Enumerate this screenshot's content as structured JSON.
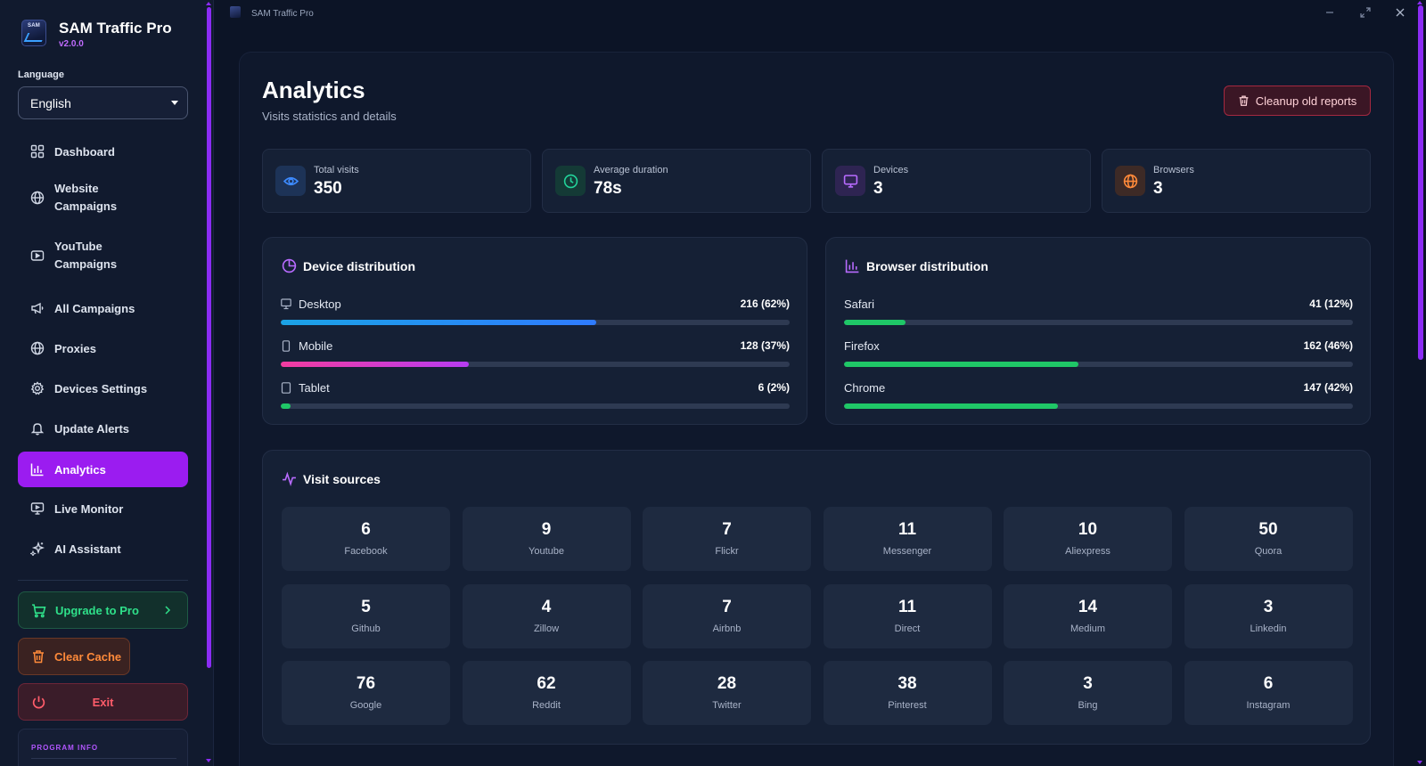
{
  "app": {
    "name": "SAM Traffic Pro",
    "version": "v2.0.0",
    "logo_text": "SAM"
  },
  "window": {
    "title": "SAM Traffic Pro"
  },
  "language": {
    "label": "Language",
    "selected": "English"
  },
  "nav": [
    {
      "label": "Dashboard",
      "icon": "dashboard-icon"
    },
    {
      "label": "Website Campaigns",
      "icon": "globe-icon"
    },
    {
      "label": "YouTube Campaigns",
      "icon": "video-icon"
    },
    {
      "label": "All Campaigns",
      "icon": "megaphone-icon"
    },
    {
      "label": "Proxies",
      "icon": "globe-icon"
    },
    {
      "label": "Devices Settings",
      "icon": "gear-icon"
    },
    {
      "label": "Update Alerts",
      "icon": "bell-icon"
    },
    {
      "label": "Analytics",
      "icon": "bar-chart-icon",
      "active": true
    },
    {
      "label": "Live Monitor",
      "icon": "monitor-icon"
    },
    {
      "label": "AI Assistant",
      "icon": "sparkles-icon"
    }
  ],
  "actions": {
    "upgrade": "Upgrade to Pro",
    "clear_cache": "Clear Cache",
    "exit": "Exit"
  },
  "program_info": {
    "label": "PROGRAM INFO"
  },
  "page": {
    "title": "Analytics",
    "subtitle": "Visits statistics and details",
    "cleanup_label": "Cleanup old reports"
  },
  "stats": [
    {
      "label": "Total visits",
      "value": "350",
      "icon": "eye-icon",
      "color": "#3d8bff",
      "bg": "#1d3357"
    },
    {
      "label": "Average duration",
      "value": "78s",
      "icon": "clock-icon",
      "color": "#22d39a",
      "bg": "#143a36"
    },
    {
      "label": "Devices",
      "value": "3",
      "icon": "monitor-icon",
      "color": "#b86bff",
      "bg": "#2e2452"
    },
    {
      "label": "Browsers",
      "value": "3",
      "icon": "globe-icon",
      "color": "#ff8a3a",
      "bg": "#3d2a26"
    }
  ],
  "device_distribution": {
    "title": "Device distribution",
    "rows": [
      {
        "name": "Desktop",
        "value": "216 (62%)",
        "percent": 62,
        "color": "linear-gradient(90deg,#1ba3e6,#2f7bff)",
        "icon": "desktop-icon"
      },
      {
        "name": "Mobile",
        "value": "128 (37%)",
        "percent": 37,
        "color": "linear-gradient(90deg,#f23ca0,#b63cf2)",
        "icon": "mobile-icon"
      },
      {
        "name": "Tablet",
        "value": "6 (2%)",
        "percent": 2,
        "color": "#1fc767",
        "icon": "tablet-icon"
      }
    ]
  },
  "browser_distribution": {
    "title": "Browser distribution",
    "rows": [
      {
        "name": "Safari",
        "value": "41 (12%)",
        "percent": 12,
        "color": "#1fc767"
      },
      {
        "name": "Firefox",
        "value": "162 (46%)",
        "percent": 46,
        "color": "#1fc767"
      },
      {
        "name": "Chrome",
        "value": "147 (42%)",
        "percent": 42,
        "color": "#1fc767"
      }
    ]
  },
  "visit_sources": {
    "title": "Visit sources",
    "items": [
      {
        "name": "Facebook",
        "count": "6"
      },
      {
        "name": "Youtube",
        "count": "9"
      },
      {
        "name": "Flickr",
        "count": "7"
      },
      {
        "name": "Messenger",
        "count": "11"
      },
      {
        "name": "Aliexpress",
        "count": "10"
      },
      {
        "name": "Quora",
        "count": "50"
      },
      {
        "name": "Github",
        "count": "5"
      },
      {
        "name": "Zillow",
        "count": "4"
      },
      {
        "name": "Airbnb",
        "count": "7"
      },
      {
        "name": "Direct",
        "count": "11"
      },
      {
        "name": "Medium",
        "count": "14"
      },
      {
        "name": "Linkedin",
        "count": "3"
      },
      {
        "name": "Google",
        "count": "76"
      },
      {
        "name": "Reddit",
        "count": "62"
      },
      {
        "name": "Twitter",
        "count": "28"
      },
      {
        "name": "Pinterest",
        "count": "38"
      },
      {
        "name": "Bing",
        "count": "3"
      },
      {
        "name": "Instagram",
        "count": "6"
      }
    ]
  },
  "colors": {
    "accent": "#9b1cf0",
    "background": "#0c1426",
    "card": "#152035"
  }
}
